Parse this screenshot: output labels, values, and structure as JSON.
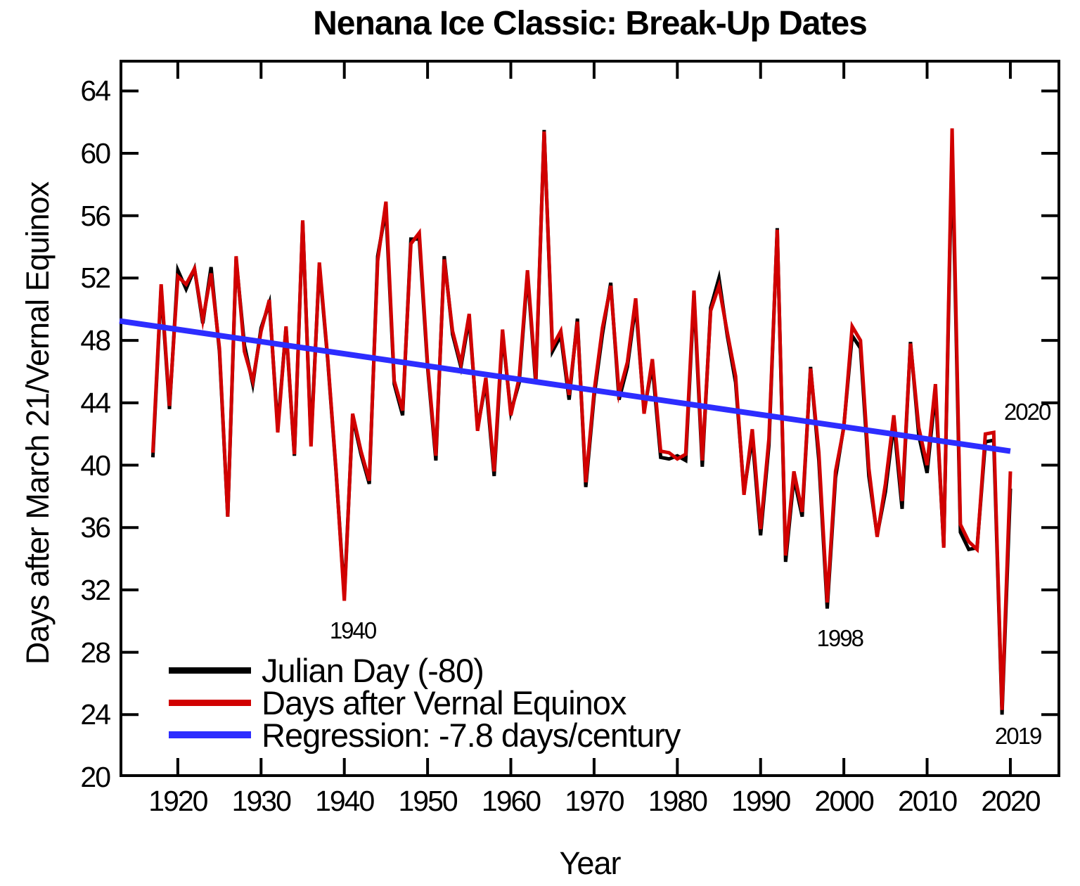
{
  "chart": {
    "title": "Nenana Ice Classic: Break-Up Dates",
    "xlabel": "Year",
    "ylabel": "Days after March 21/Vernal Equinox"
  },
  "chart_data": {
    "type": "line",
    "title": "Nenana Ice Classic: Break-Up Dates",
    "xlabel": "Year",
    "ylabel": "Days after March 21/Vernal Equinox",
    "x_range": [
      1913,
      2026
    ],
    "y_range": [
      20,
      66
    ],
    "x_ticks": [
      1920,
      1930,
      1940,
      1950,
      1960,
      1970,
      1980,
      1990,
      2000,
      2010,
      2020
    ],
    "y_ticks": [
      64,
      60,
      56,
      52,
      48,
      44,
      40,
      36,
      32,
      28,
      24,
      20
    ],
    "grid": false,
    "legend_position": "inside-bottom-left",
    "start_year": 1917,
    "series": [
      {
        "name": "Julian Day (-80)",
        "color": "#000000",
        "values": [
          40.5,
          51.4,
          43.6,
          52.5,
          51.3,
          52.6,
          49.1,
          52.7,
          47.3,
          36.7,
          53.2,
          47.7,
          45.2,
          48.8,
          50.4,
          42.4,
          48.8,
          40.6,
          55.6,
          41.5,
          52.8,
          46.8,
          39.6,
          31.6,
          43.1,
          40.7,
          38.8,
          53.4,
          56.4,
          45.2,
          43.2,
          54.5,
          54.5,
          46.3,
          40.3,
          53.4,
          48.4,
          46.3,
          49.4,
          42.4,
          45.3,
          39.3,
          48.4,
          43.4,
          45.3,
          52.3,
          45.2,
          61.5,
          47.3,
          48.3,
          44.2,
          49.4,
          38.6,
          44.4,
          48.4,
          51.7,
          44.2,
          46.3,
          50.3,
          43.5,
          46.4,
          40.5,
          40.4,
          40.6,
          40.3,
          50.9,
          39.9,
          50.1,
          52.0,
          48.3,
          45.3,
          38.3,
          41.8,
          35.5,
          41.3,
          55.2,
          33.8,
          39.2,
          36.7,
          46.3,
          40.3,
          30.8,
          39.2,
          42.5,
          48.3,
          47.5,
          39.3,
          35.5,
          38.3,
          42.7,
          37.2,
          47.9,
          41.9,
          39.5,
          44.7,
          34.8,
          60.6,
          35.7,
          34.6,
          34.7,
          41.5,
          41.6,
          24.0,
          38.5
        ]
      },
      {
        "name": "Days after Vernal Equinox",
        "color": "#d10000",
        "values": [
          40.8,
          51.6,
          43.8,
          52.1,
          51.6,
          52.6,
          49.3,
          52.3,
          47.5,
          36.7,
          53.4,
          47.3,
          45.4,
          48.6,
          50.6,
          42.1,
          48.9,
          40.7,
          55.7,
          41.2,
          53.0,
          46.9,
          39.7,
          31.3,
          43.3,
          40.9,
          39.0,
          53.1,
          56.9,
          45.4,
          43.5,
          54.2,
          54.9,
          46.5,
          40.6,
          53.2,
          48.6,
          46.5,
          49.7,
          42.2,
          45.6,
          39.6,
          48.7,
          43.2,
          45.6,
          52.5,
          45.5,
          61.4,
          47.6,
          48.6,
          44.5,
          49.2,
          38.9,
          44.7,
          48.8,
          51.5,
          44.6,
          46.6,
          50.7,
          43.3,
          46.8,
          40.9,
          40.8,
          40.4,
          40.7,
          51.2,
          40.3,
          49.9,
          51.5,
          48.5,
          45.7,
          38.1,
          42.3,
          35.9,
          41.7,
          55.1,
          34.2,
          39.6,
          37.0,
          46.2,
          40.8,
          31.2,
          39.6,
          42.4,
          48.9,
          48.0,
          39.8,
          35.4,
          38.8,
          43.2,
          37.7,
          47.8,
          42.4,
          40.0,
          45.2,
          34.7,
          61.6,
          36.2,
          35.1,
          34.6,
          42.0,
          42.1,
          24.3,
          39.6
        ]
      }
    ],
    "regression": {
      "label": "Regression: -7.8 days/century",
      "color": "#2d2dff",
      "slope_days_per_century": -7.8,
      "points": [
        {
          "year": 1913,
          "value": 49.25
        },
        {
          "year": 2020,
          "value": 40.9
        }
      ]
    },
    "annotations": [
      {
        "text": "1940",
        "year": 1941.0,
        "value": 29.4
      },
      {
        "text": "1998",
        "year": 1999.5,
        "value": 28.9
      },
      {
        "text": "2019",
        "year": 2020.9,
        "value": 22.6
      },
      {
        "text": "2020",
        "year": 2022.0,
        "value": 43.4
      }
    ]
  },
  "legend": {
    "items": [
      {
        "label": "Julian Day (-80)",
        "color": "#000000"
      },
      {
        "label": "Days after Vernal Equinox",
        "color": "#d10000"
      },
      {
        "label": "Regression: -7.8 days/century",
        "color": "#2d2dff"
      }
    ]
  }
}
